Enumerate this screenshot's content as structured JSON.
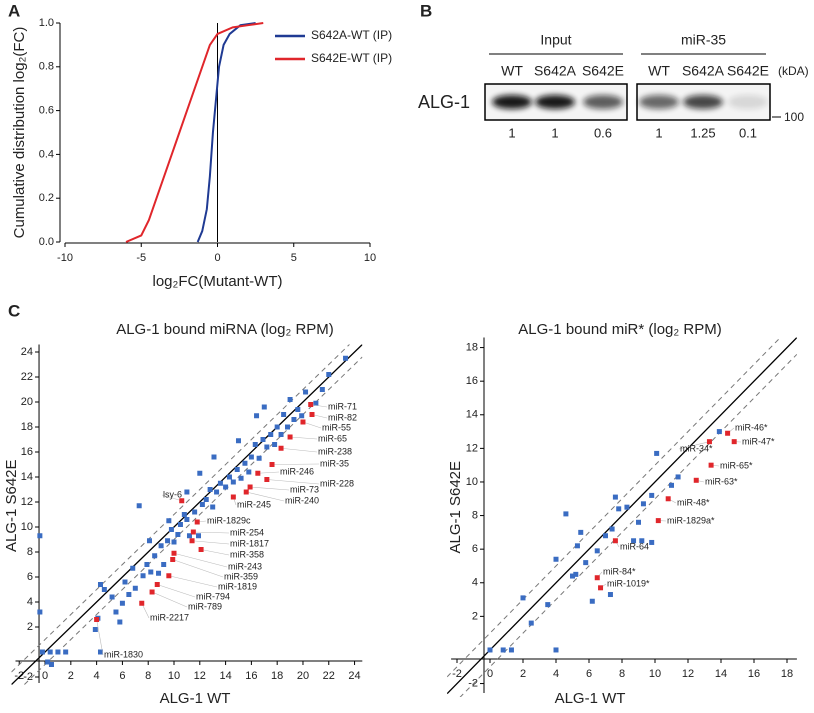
{
  "panel_labels": [
    "A",
    "B",
    "C"
  ],
  "chart_data": [
    {
      "type": "line",
      "xlabel": "log₂FC(Mutant-WT)",
      "ylabel": "Cumulative distribution log₂(FC)",
      "xlim": [
        -10,
        10
      ],
      "xticks": [
        -10,
        -5,
        0,
        5,
        10
      ],
      "ylim": [
        0,
        1
      ],
      "yticks": [
        {
          "value": 0,
          "label": "0.0"
        },
        0.2,
        0.4,
        0.6,
        0.8,
        {
          "value": 1,
          "label": "1.0"
        }
      ],
      "vline": 0,
      "legend": "upper right",
      "series": [
        {
          "name": "S642A-WT (IP)",
          "color": "#1f3a93",
          "x": [
            -1.3,
            -1,
            -0.7,
            -0.5,
            -0.3,
            -0.1,
            0.1,
            0.4,
            0.8,
            1.5,
            2.5
          ],
          "values": [
            0,
            0.05,
            0.15,
            0.3,
            0.5,
            0.65,
            0.8,
            0.9,
            0.95,
            0.99,
            1
          ]
        },
        {
          "name": "S642E-WT (IP)",
          "color": "#e0262b",
          "x": [
            -6,
            -5,
            -4.5,
            -4,
            -3.5,
            -3,
            -2.5,
            -2,
            -1.5,
            -1,
            -0.5,
            0,
            1,
            2,
            3
          ],
          "values": [
            0,
            0.03,
            0.1,
            0.2,
            0.3,
            0.4,
            0.5,
            0.6,
            0.7,
            0.8,
            0.9,
            0.95,
            0.98,
            0.99,
            1
          ]
        }
      ]
    },
    {
      "type": "scatter",
      "title": "ALG-1 bound miRNA (log₂ RPM)",
      "xlabel": "ALG-1 WT",
      "ylabel": "ALG-1 S642E",
      "xlim": [
        -2.6,
        24.6
      ],
      "xticks": [
        -2,
        0,
        2,
        4,
        6,
        8,
        10,
        12,
        14,
        16,
        18,
        20,
        22,
        24
      ],
      "ylim": [
        -2.8,
        24.6
      ],
      "yticks": [
        -2,
        2,
        4,
        6,
        8,
        10,
        12,
        14,
        16,
        18,
        20,
        22,
        24
      ],
      "reference_lines": [
        {
          "offset": 0,
          "dash": false
        },
        {
          "offset": 1,
          "dash": true
        },
        {
          "offset": -1,
          "dash": true
        }
      ],
      "series": [
        {
          "color": "#3a6cc2",
          "x": [
            -0.2,
            0.4,
            1,
            1.6,
            4.3,
            -0.4,
            -0.4,
            0.2,
            0.5,
            3.9,
            4.1,
            4.3,
            4.6,
            5.2,
            5.5,
            5.8,
            6,
            6.2,
            6.5,
            6.8,
            7,
            7.3,
            7.6,
            7.9,
            8.2,
            8.5,
            8.8,
            9,
            9.2,
            9.5,
            9.8,
            10,
            10.3,
            10.5,
            10.8,
            11,
            11.2,
            11.6,
            11.9,
            12.2,
            12.5,
            12.8,
            13,
            13.3,
            13.6,
            14,
            14.3,
            14.6,
            14.9,
            15.2,
            15.5,
            15.8,
            16,
            16.3,
            16.6,
            16.9,
            17.2,
            17.5,
            17.8,
            18,
            18.3,
            18.5,
            18.8,
            19,
            19.3,
            19.6,
            19.9,
            20.2,
            21,
            21.5,
            22,
            23.3,
            13.1,
            12,
            11,
            15,
            17,
            16.4,
            8.1,
            9.6
          ],
          "values": [
            0,
            0,
            0,
            0,
            0,
            9.3,
            3.2,
            -0.8,
            -1,
            1.8,
            2.7,
            5.4,
            5,
            4.4,
            3.2,
            2.4,
            3.9,
            5.6,
            4.6,
            6.7,
            5.1,
            11.7,
            6.1,
            7,
            6.4,
            7.7,
            6.3,
            8.5,
            7,
            8.9,
            9.8,
            8.8,
            9.4,
            10.2,
            11,
            10.6,
            9.3,
            11.2,
            9.3,
            11.8,
            12.2,
            13,
            11.6,
            12.8,
            13.5,
            13.2,
            14,
            13.6,
            14.6,
            13.9,
            15.1,
            14.4,
            15.6,
            16.6,
            15.5,
            17,
            16.4,
            17.4,
            16.6,
            18,
            17.4,
            19,
            18,
            20.2,
            18.6,
            19.4,
            18.9,
            20.8,
            19.9,
            21,
            22.2,
            23.5,
            15.6,
            14.3,
            12.8,
            16.9,
            19.6,
            18.9,
            8.9,
            10.5
          ]
        },
        {
          "color": "#e0262b",
          "labels": [
            "miR-71",
            "miR-82",
            "miR-55",
            "miR-65",
            "miR-238",
            "miR-35",
            "miR-246",
            "miR-228",
            "miR-73",
            "miR-240",
            "miR-245",
            "lsy-6",
            "miR-1829c",
            "miR-254",
            "miR-1817",
            "miR-358",
            "miR-243",
            "miR-359",
            "miR-1819",
            "miR-794",
            "miR-789",
            "miR-2217",
            "miR-1830"
          ],
          "x": [
            20.6,
            20.7,
            20,
            19,
            18.3,
            17.6,
            16.5,
            17.2,
            15.9,
            15.6,
            14.6,
            10.6,
            11.8,
            11.5,
            11.4,
            12.1,
            10,
            9.9,
            9.6,
            8.7,
            8.3,
            7.5,
            4
          ],
          "values": [
            19.8,
            19,
            18.4,
            17.2,
            16.3,
            15,
            14.3,
            13.8,
            13.2,
            12.8,
            12.4,
            12.1,
            10.4,
            9.6,
            8.9,
            8.2,
            7.9,
            7.4,
            6.1,
            5.4,
            4.8,
            3.9,
            2.6
          ]
        }
      ]
    },
    {
      "type": "scatter",
      "title": "ALG-1 bound miR* (log₂ RPM)",
      "xlabel": "ALG-1 WT",
      "ylabel": "ALG-1 S642E",
      "xlim": [
        -2.6,
        18.6
      ],
      "xticks": [
        -2,
        0,
        2,
        4,
        6,
        8,
        10,
        12,
        14,
        16,
        18
      ],
      "ylim": [
        -2.8,
        18.6
      ],
      "yticks": [
        -2,
        2,
        4,
        6,
        8,
        10,
        12,
        14,
        16,
        18
      ],
      "reference_lines": [
        {
          "offset": 0,
          "dash": false
        },
        {
          "offset": 1,
          "dash": true
        },
        {
          "offset": -1,
          "dash": true
        }
      ],
      "series": [
        {
          "color": "#3a6cc2",
          "x": [
            0,
            0.8,
            1.3,
            4,
            2,
            2.5,
            3.5,
            4,
            4.6,
            5,
            5.2,
            5.3,
            5.5,
            5.8,
            6.2,
            6.5,
            7.3,
            7,
            7.4,
            7.6,
            7.8,
            8.3,
            8.7,
            9,
            9.2,
            9.3,
            9.8,
            10.1,
            9.8,
            11,
            11.4,
            13.9
          ],
          "values": [
            0,
            0,
            0,
            0,
            3.1,
            1.6,
            2.7,
            5.4,
            8.1,
            4.4,
            4.5,
            6.2,
            7,
            5.2,
            2.9,
            5.9,
            3.3,
            6.8,
            7.2,
            9.1,
            8.4,
            8.5,
            6.5,
            7.6,
            6.5,
            8.7,
            6.4,
            11.7,
            9.2,
            9.8,
            10.3,
            13
          ]
        },
        {
          "color": "#e0262b",
          "labels": [
            "miR-46*",
            "miR-47*",
            "miR-34*",
            "miR-65*",
            "miR-63*",
            "miR-48*",
            "miR-1829a*",
            "miR-64",
            "miR-84*",
            "miR-1019*"
          ],
          "x": [
            14.4,
            14.8,
            13.3,
            13.4,
            12.5,
            10.8,
            10.2,
            7.6,
            6.5,
            6.7
          ],
          "values": [
            12.9,
            12.4,
            12.4,
            11,
            10.1,
            9,
            7.7,
            6.5,
            4.3,
            3.7
          ]
        }
      ]
    }
  ],
  "blot": {
    "protein": "ALG-1",
    "unit": "(kDA)",
    "marker": "100",
    "groups": [
      {
        "name": "Input",
        "lanes": [
          "WT",
          "S642A",
          "S642E"
        ],
        "quant": [
          1,
          1,
          0.6
        ]
      },
      {
        "name": "miR-35",
        "lanes": [
          "WT",
          "S642A",
          "S642E"
        ],
        "quant": [
          1,
          1.25,
          0.1
        ]
      }
    ]
  }
}
